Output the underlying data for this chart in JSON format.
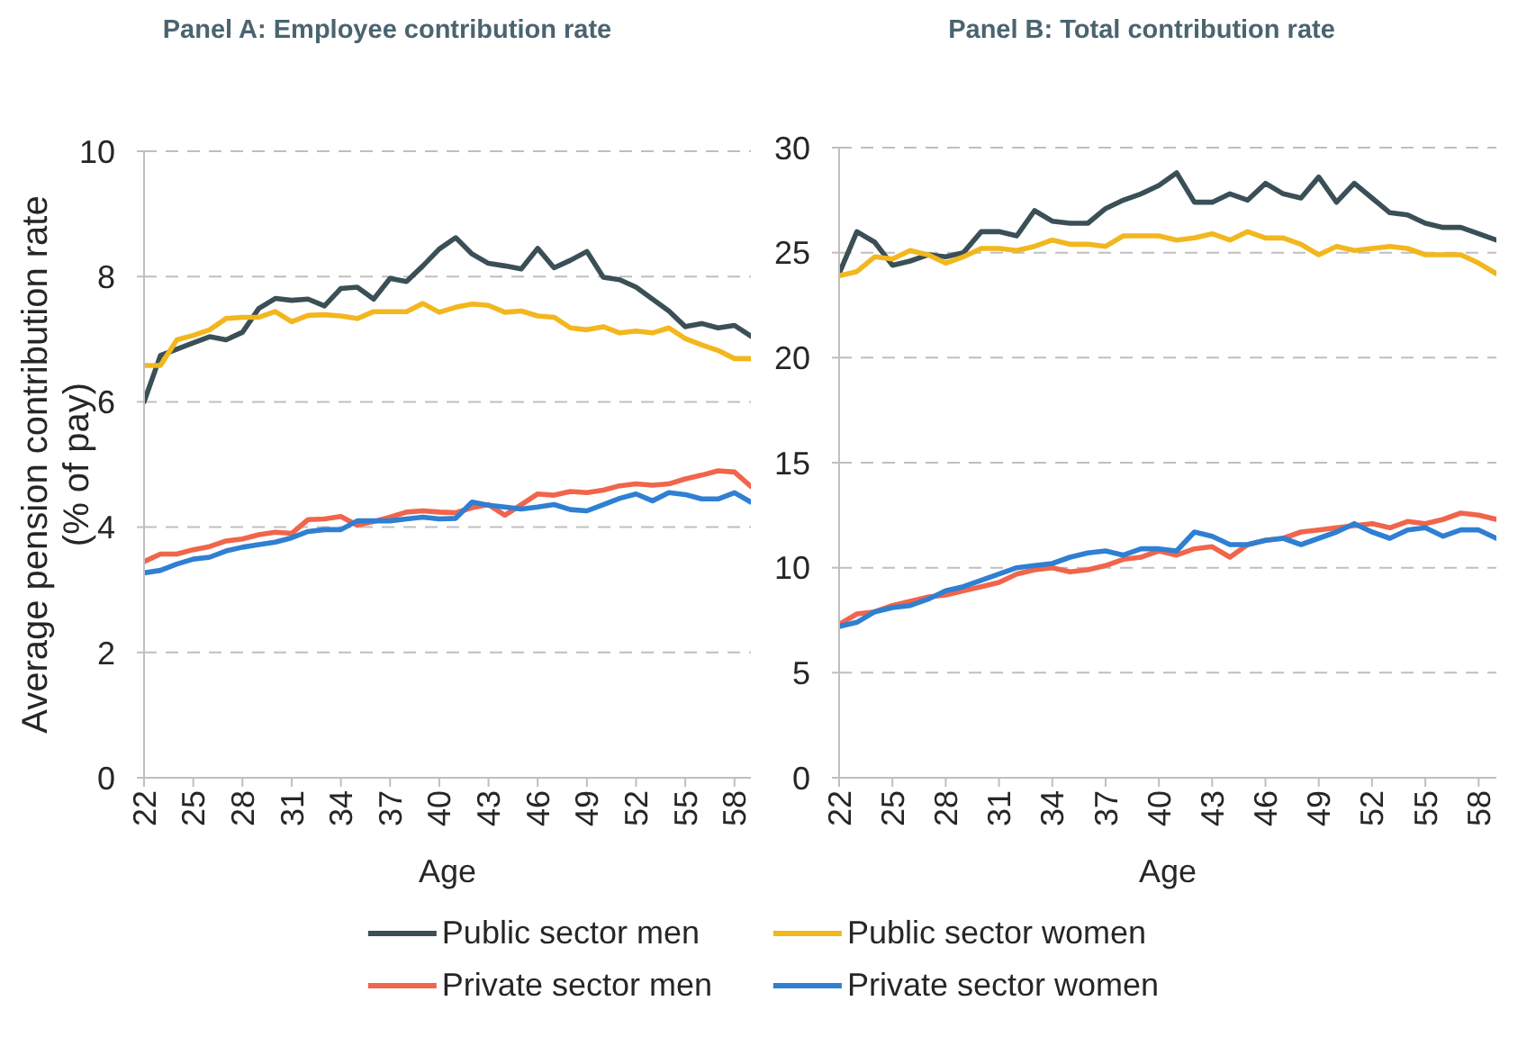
{
  "chart_data": [
    {
      "type": "line",
      "title": "Panel A: Employee contribution rate",
      "xlabel": "Age",
      "ylabel": "Average pension contribution rate (% of pay)",
      "x": [
        22,
        23,
        24,
        25,
        26,
        27,
        28,
        29,
        30,
        31,
        32,
        33,
        34,
        35,
        36,
        37,
        38,
        39,
        40,
        41,
        42,
        43,
        44,
        45,
        46,
        47,
        48,
        49,
        50,
        51,
        52,
        53,
        54,
        55,
        56,
        57,
        58,
        59
      ],
      "xlim": [
        22,
        59
      ],
      "xticks": [
        22,
        25,
        28,
        31,
        34,
        37,
        40,
        43,
        46,
        49,
        52,
        55,
        58
      ],
      "ylim": [
        0,
        10
      ],
      "yticks": [
        0,
        2,
        4,
        6,
        8,
        10
      ],
      "grid": "y",
      "legend": "bottom",
      "series": [
        {
          "name": "Public sector men",
          "color": "#3a4f56",
          "values": [
            6.0,
            6.74,
            6.84,
            6.94,
            7.04,
            6.99,
            7.11,
            7.49,
            7.65,
            7.62,
            7.64,
            7.53,
            7.81,
            7.83,
            7.64,
            7.97,
            7.92,
            8.17,
            8.44,
            8.62,
            8.36,
            8.21,
            8.17,
            8.12,
            8.45,
            8.14,
            8.26,
            8.4,
            7.99,
            7.95,
            7.83,
            7.64,
            7.45,
            7.2,
            7.25,
            7.18,
            7.22,
            7.05
          ]
        },
        {
          "name": "Public sector women",
          "color": "#f2b71e",
          "values": [
            6.58,
            6.58,
            6.99,
            7.06,
            7.15,
            7.33,
            7.35,
            7.35,
            7.44,
            7.28,
            7.38,
            7.39,
            7.37,
            7.33,
            7.44,
            7.44,
            7.44,
            7.57,
            7.43,
            7.51,
            7.56,
            7.54,
            7.43,
            7.45,
            7.37,
            7.35,
            7.18,
            7.15,
            7.2,
            7.1,
            7.13,
            7.1,
            7.18,
            7.01,
            6.91,
            6.82,
            6.69,
            6.69
          ]
        },
        {
          "name": "Private sector men",
          "color": "#f0654b",
          "values": [
            3.45,
            3.57,
            3.57,
            3.64,
            3.69,
            3.78,
            3.81,
            3.88,
            3.92,
            3.9,
            4.12,
            4.13,
            4.17,
            4.03,
            4.09,
            4.16,
            4.24,
            4.26,
            4.24,
            4.23,
            4.31,
            4.36,
            4.19,
            4.36,
            4.53,
            4.51,
            4.57,
            4.55,
            4.59,
            4.66,
            4.69,
            4.67,
            4.69,
            4.77,
            4.83,
            4.9,
            4.88,
            4.65
          ]
        },
        {
          "name": "Private sector women",
          "color": "#2f7fd2",
          "values": [
            3.27,
            3.31,
            3.41,
            3.49,
            3.52,
            3.62,
            3.68,
            3.72,
            3.76,
            3.83,
            3.93,
            3.96,
            3.96,
            4.1,
            4.1,
            4.1,
            4.13,
            4.16,
            4.13,
            4.14,
            4.4,
            4.35,
            4.32,
            4.29,
            4.32,
            4.36,
            4.28,
            4.26,
            4.36,
            4.46,
            4.53,
            4.42,
            4.55,
            4.52,
            4.45,
            4.45,
            4.55,
            4.4
          ]
        }
      ]
    },
    {
      "type": "line",
      "title": "Panel B: Total contribution rate",
      "xlabel": "Age",
      "x": [
        22,
        23,
        24,
        25,
        26,
        27,
        28,
        29,
        30,
        31,
        32,
        33,
        34,
        35,
        36,
        37,
        38,
        39,
        40,
        41,
        42,
        43,
        44,
        45,
        46,
        47,
        48,
        49,
        50,
        51,
        52,
        53,
        54,
        55,
        56,
        57,
        58,
        59
      ],
      "xlim": [
        22,
        59
      ],
      "xticks": [
        22,
        25,
        28,
        31,
        34,
        37,
        40,
        43,
        46,
        49,
        52,
        55,
        58
      ],
      "ylim": [
        0,
        30
      ],
      "yticks": [
        0,
        5,
        10,
        15,
        20,
        25,
        30
      ],
      "grid": "y",
      "series": [
        {
          "color": "#3a4f56",
          "values": [
            24.0,
            26.0,
            25.5,
            24.4,
            24.6,
            24.9,
            24.8,
            25.0,
            26.0,
            26.0,
            25.8,
            27.0,
            26.5,
            26.4,
            26.4,
            27.1,
            27.5,
            27.8,
            28.2,
            28.8,
            27.4,
            27.4,
            27.8,
            27.5,
            28.3,
            27.8,
            27.6,
            28.6,
            27.4,
            28.3,
            27.6,
            26.9,
            26.8,
            26.4,
            26.2,
            26.2,
            25.9,
            25.6
          ]
        },
        {
          "color": "#f2b71e",
          "values": [
            23.9,
            24.1,
            24.8,
            24.7,
            25.1,
            24.9,
            24.5,
            24.8,
            25.2,
            25.2,
            25.1,
            25.3,
            25.6,
            25.4,
            25.4,
            25.3,
            25.8,
            25.8,
            25.8,
            25.6,
            25.7,
            25.9,
            25.6,
            26.0,
            25.7,
            25.7,
            25.4,
            24.9,
            25.3,
            25.1,
            25.2,
            25.3,
            25.2,
            24.9,
            24.9,
            24.9,
            24.5,
            24.0
          ]
        },
        {
          "color": "#f0654b",
          "values": [
            7.3,
            7.8,
            7.9,
            8.2,
            8.4,
            8.6,
            8.7,
            8.9,
            9.1,
            9.3,
            9.7,
            9.9,
            10.0,
            9.8,
            9.9,
            10.1,
            10.4,
            10.5,
            10.8,
            10.6,
            10.9,
            11.0,
            10.5,
            11.1,
            11.3,
            11.4,
            11.7,
            11.8,
            11.9,
            12.0,
            12.1,
            11.9,
            12.2,
            12.1,
            12.3,
            12.6,
            12.5,
            12.3
          ]
        },
        {
          "color": "#2f7fd2",
          "values": [
            7.2,
            7.4,
            7.9,
            8.1,
            8.2,
            8.5,
            8.9,
            9.1,
            9.4,
            9.7,
            10.0,
            10.1,
            10.2,
            10.5,
            10.7,
            10.8,
            10.6,
            10.9,
            10.9,
            10.8,
            11.7,
            11.5,
            11.1,
            11.1,
            11.3,
            11.4,
            11.1,
            11.4,
            11.7,
            12.1,
            11.7,
            11.4,
            11.8,
            11.9,
            11.5,
            11.8,
            11.8,
            11.4
          ]
        }
      ]
    }
  ]
}
